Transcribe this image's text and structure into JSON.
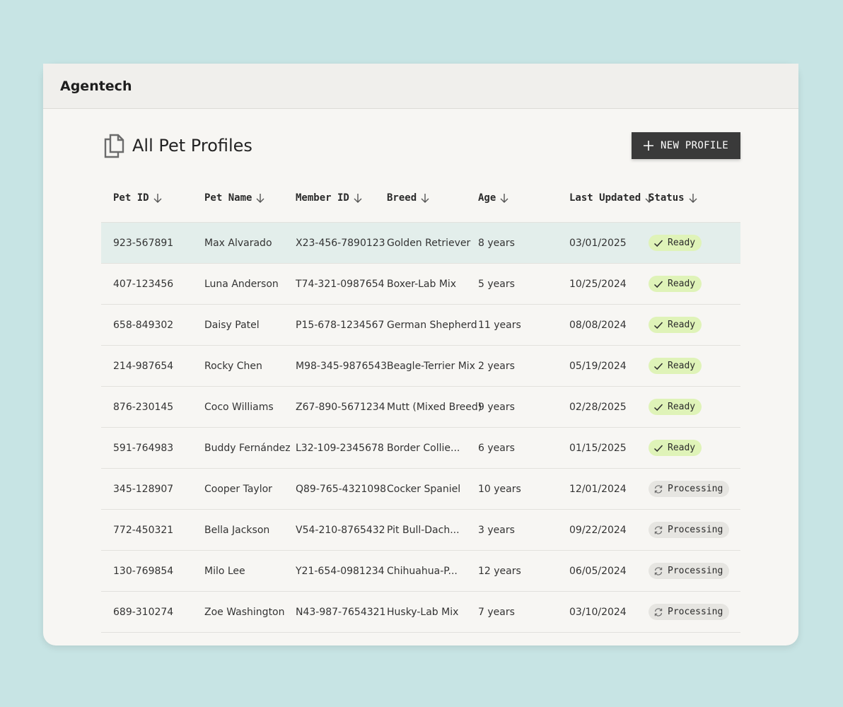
{
  "app": {
    "name": "Agentech"
  },
  "page": {
    "title": "All Pet Profiles"
  },
  "actions": {
    "new_profile_label": "NEW PROFILE"
  },
  "colors": {
    "background": "#c7e4e4",
    "ready_badge": "#dff3b8",
    "processing_badge": "#e6e5e1",
    "primary_button": "#3a3a3a",
    "selected_row": "#e3eeeb"
  },
  "table": {
    "columns": [
      "Pet ID",
      "Pet Name",
      "Member ID",
      "Breed",
      "Age",
      "Last Updated",
      "Status"
    ],
    "rows": [
      {
        "pet_id": "923-567891",
        "pet_name": "Max Alvarado",
        "member_id": "X23-456-7890123",
        "breed": "Golden Retriever",
        "age": "8 years",
        "updated": "03/01/2025",
        "status": "Ready",
        "status_icon": "checkmark-icon"
      },
      {
        "pet_id": "407-123456",
        "pet_name": "Luna Anderson",
        "member_id": "T74-321-0987654",
        "breed": "Boxer-Lab Mix",
        "age": "5 years",
        "updated": "10/25/2024",
        "status": "Ready",
        "status_icon": "checkmark-icon"
      },
      {
        "pet_id": "658-849302",
        "pet_name": "Daisy Patel",
        "member_id": "P15-678-1234567",
        "breed": "German Shepherd",
        "age": "11 years",
        "updated": "08/08/2024",
        "status": "Ready",
        "status_icon": "checkmark-icon"
      },
      {
        "pet_id": "214-987654",
        "pet_name": "Rocky Chen",
        "member_id": "M98-345-9876543",
        "breed": "Beagle-Terrier Mix",
        "age": "2 years",
        "updated": "05/19/2024",
        "status": "Ready",
        "status_icon": "checkmark-icon"
      },
      {
        "pet_id": "876-230145",
        "pet_name": "Coco Williams",
        "member_id": "Z67-890-5671234",
        "breed": "Mutt (Mixed Breed)",
        "age": "9 years",
        "updated": "02/28/2025",
        "status": "Ready",
        "status_icon": "checkmark-icon"
      },
      {
        "pet_id": "591-764983",
        "pet_name": "Buddy Fernández",
        "member_id": "L32-109-2345678",
        "breed": "Border Collie...",
        "age": "6 years",
        "updated": "01/15/2025",
        "status": "Ready",
        "status_icon": "checkmark-icon"
      },
      {
        "pet_id": "345-128907",
        "pet_name": "Cooper Taylor",
        "member_id": "Q89-765-4321098",
        "breed": "Cocker Spaniel",
        "age": "10 years",
        "updated": "12/01/2024",
        "status": "Processing",
        "status_icon": "sync-icon"
      },
      {
        "pet_id": "772-450321",
        "pet_name": "Bella Jackson",
        "member_id": "V54-210-8765432",
        "breed": "Pit Bull-Dach...",
        "age": "3 years",
        "updated": "09/22/2024",
        "status": "Processing",
        "status_icon": "sync-icon"
      },
      {
        "pet_id": "130-769854",
        "pet_name": "Milo Lee",
        "member_id": "Y21-654-0981234",
        "breed": "Chihuahua-P...",
        "age": "12 years",
        "updated": "06/05/2024",
        "status": "Processing",
        "status_icon": "sync-icon"
      },
      {
        "pet_id": "689-310274",
        "pet_name": "Zoe Washington",
        "member_id": "N43-987-7654321",
        "breed": "Husky-Lab Mix",
        "age": "7 years",
        "updated": "03/10/2024",
        "status": "Processing",
        "status_icon": "sync-icon"
      }
    ],
    "selected_row": 0
  }
}
